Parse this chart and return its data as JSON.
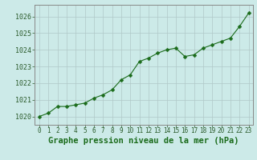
{
  "x": [
    0,
    1,
    2,
    3,
    4,
    5,
    6,
    7,
    8,
    9,
    10,
    11,
    12,
    13,
    14,
    15,
    16,
    17,
    18,
    19,
    20,
    21,
    22,
    23
  ],
  "y": [
    1020.0,
    1020.2,
    1020.6,
    1020.6,
    1020.7,
    1020.8,
    1021.1,
    1021.3,
    1021.6,
    1022.2,
    1022.5,
    1023.3,
    1023.5,
    1023.8,
    1024.0,
    1024.1,
    1023.6,
    1023.7,
    1024.1,
    1024.3,
    1024.5,
    1024.7,
    1025.4,
    1026.2
  ],
  "line_color": "#1a6b1a",
  "marker": "D",
  "marker_size": 2.5,
  "background_color": "#cceae8",
  "grid_color": "#b0c8c8",
  "ylim": [
    1019.5,
    1026.7
  ],
  "xlim": [
    -0.5,
    23.5
  ],
  "yticks": [
    1020,
    1021,
    1022,
    1023,
    1024,
    1025,
    1026
  ],
  "xticks": [
    0,
    1,
    2,
    3,
    4,
    5,
    6,
    7,
    8,
    9,
    10,
    11,
    12,
    13,
    14,
    15,
    16,
    17,
    18,
    19,
    20,
    21,
    22,
    23
  ],
  "xlabel": "Graphe pression niveau de la mer (hPa)",
  "xlabel_color": "#1a6b1a",
  "xlabel_fontsize": 7.5,
  "tick_color": "#2a5a2a",
  "ytick_fontsize": 6.0,
  "xtick_fontsize": 5.5,
  "axis_color": "#888888",
  "linewidth": 0.8
}
